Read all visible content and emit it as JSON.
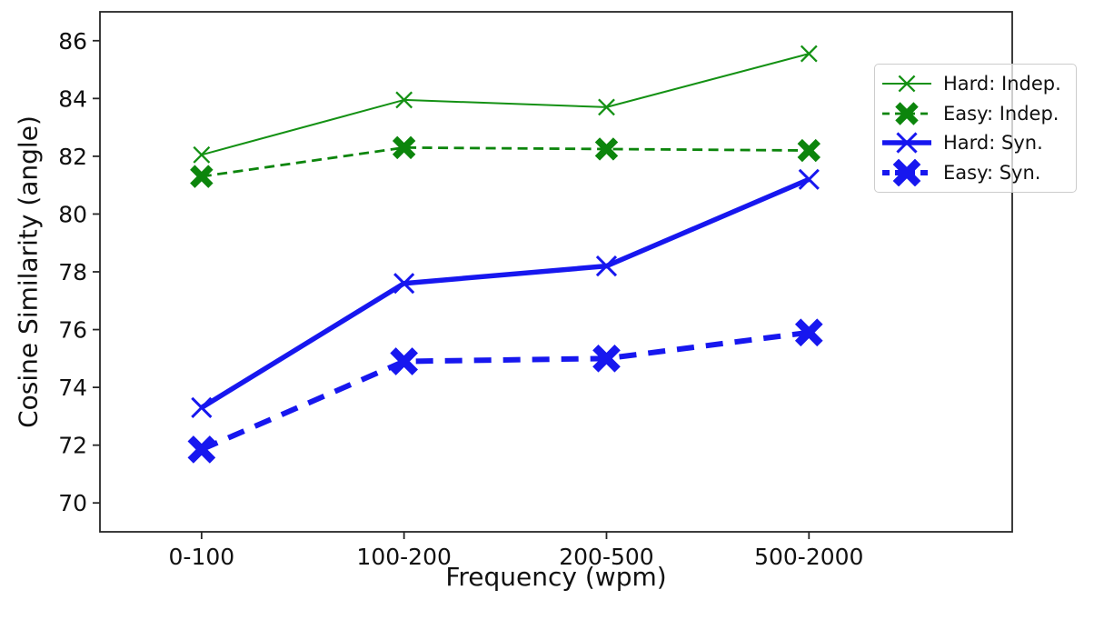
{
  "figure": {
    "background": "#ffffff",
    "spine_color": "#262626",
    "tick_color": "#262626",
    "text_color": "#111111",
    "legend_border_color": "#cccccc"
  },
  "chart_data": {
    "type": "line",
    "title": "",
    "xlabel": "Frequency (wpm)",
    "ylabel": "Cosine Similarity (angle)",
    "categories": [
      "0-100",
      "100-200",
      "200-500",
      "500-2000"
    ],
    "y_ticks": [
      70,
      72,
      74,
      76,
      78,
      80,
      82,
      84,
      86
    ],
    "ylim": [
      69,
      87
    ],
    "grid": false,
    "legend_position": "upper right",
    "series": [
      {
        "name": "Hard: Indep.",
        "color": "#149114",
        "line": "solid",
        "line_width": 2,
        "dash": "",
        "marker": "x",
        "marker_size": 22,
        "marker_stroke": 2.3,
        "values": [
          82.05,
          83.95,
          83.7,
          85.55
        ]
      },
      {
        "name": "Easy: Indep.",
        "color": "#0c850c",
        "line": "dashed",
        "line_width": 2.8,
        "dash": "11 6.5",
        "marker": "X",
        "marker_size": 19,
        "marker_stroke": 7.5,
        "values": [
          81.3,
          82.3,
          82.25,
          82.2
        ]
      },
      {
        "name": "Hard: Syn.",
        "color": "#1717ef",
        "line": "solid",
        "line_width": 5.5,
        "dash": "",
        "marker": "x",
        "marker_size": 27,
        "marker_stroke": 3,
        "values": [
          73.3,
          77.6,
          78.2,
          81.2
        ]
      },
      {
        "name": "Easy: Syn.",
        "color": "#1717ef",
        "line": "dashed",
        "line_width": 6,
        "dash": "19 13",
        "marker": "X",
        "marker_size": 23,
        "marker_stroke": 9,
        "values": [
          71.85,
          74.9,
          75.0,
          75.9
        ]
      }
    ]
  }
}
